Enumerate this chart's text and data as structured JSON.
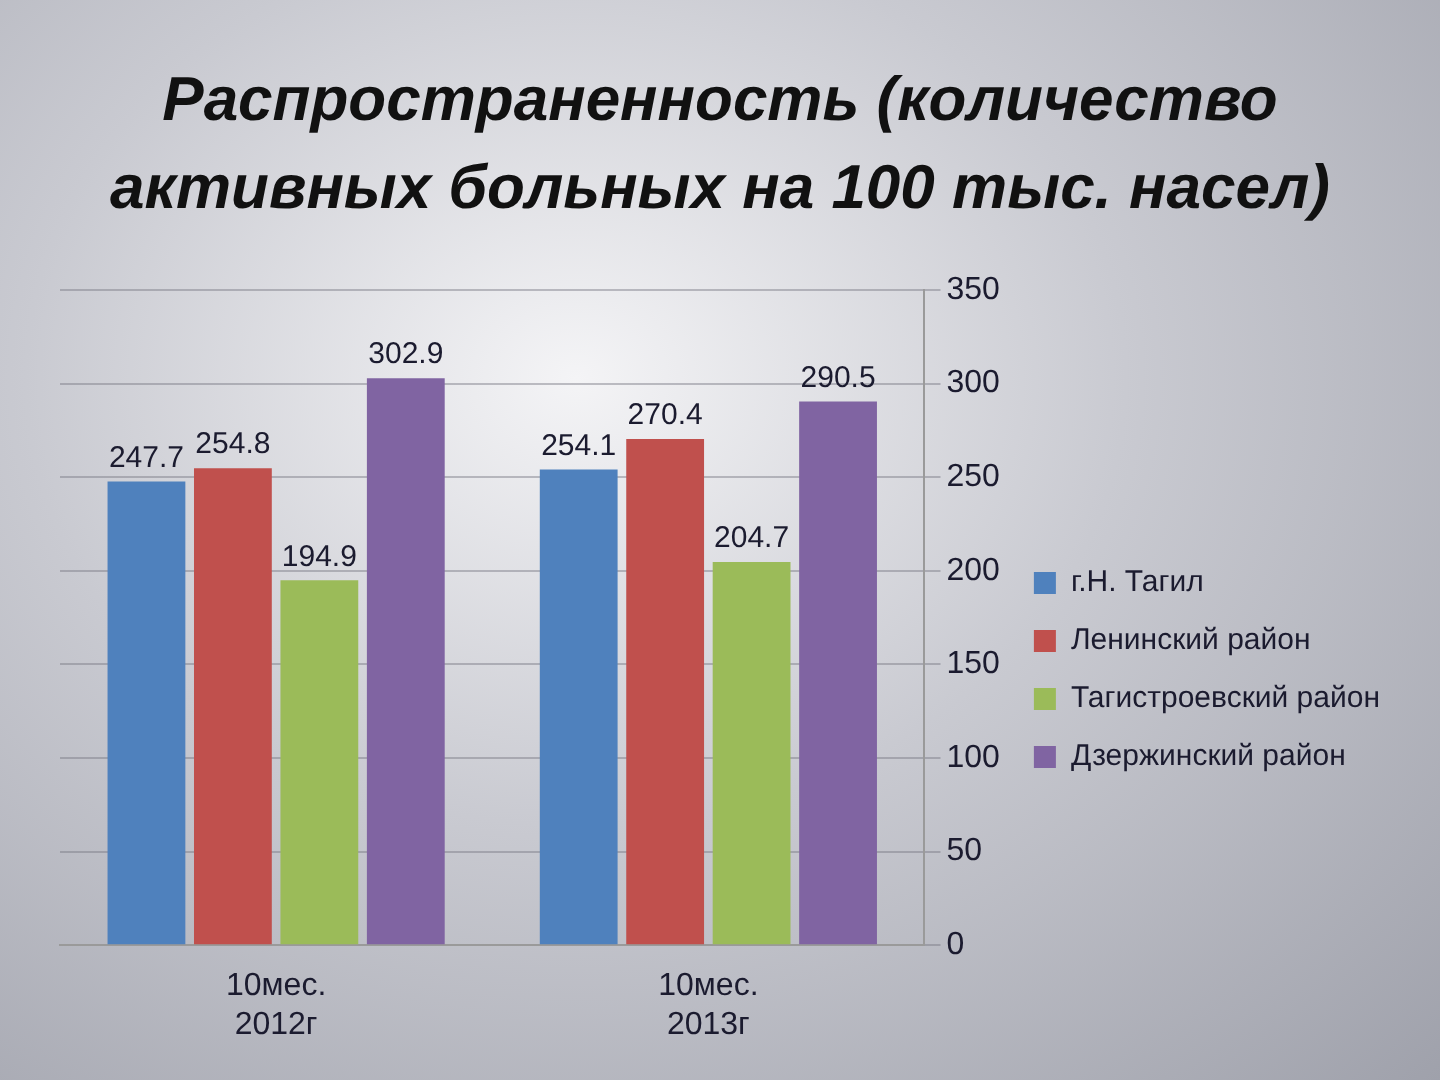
{
  "chart_data": {
    "type": "bar",
    "title": "Распространенность (количество активных больных на 100 тыс. насел)",
    "categories": [
      "10мес. 2012г",
      "10мес. 2013г"
    ],
    "series": [
      {
        "name": "г.Н. Тагил",
        "color": "#4f81bd",
        "values": [
          247.7,
          254.1
        ]
      },
      {
        "name": "Ленинский район",
        "color": "#c0504d",
        "values": [
          254.8,
          270.4
        ]
      },
      {
        "name": "Тагистроевский район",
        "color": "#9bbb59",
        "values": [
          194.9,
          204.7
        ]
      },
      {
        "name": "Дзержинский район",
        "color": "#8064a2",
        "values": [
          302.9,
          290.5
        ]
      }
    ],
    "ylim": [
      0,
      350
    ],
    "yticks": [
      0,
      50,
      100,
      150,
      200,
      250,
      300,
      350
    ],
    "grid": "y",
    "legend": "right",
    "data_labels": true
  }
}
